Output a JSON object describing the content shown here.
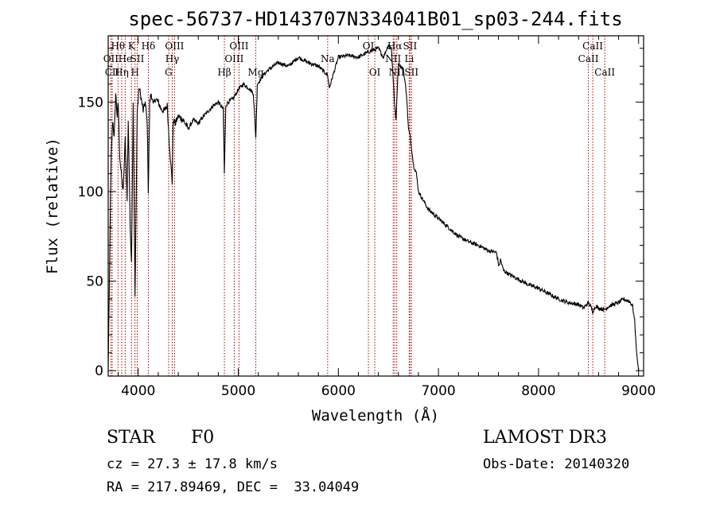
{
  "chart_data": {
    "type": "line",
    "title": "spec-56737-HD143707N334041B01_sp03-244.fits",
    "xlabel": "Wavelength (Å)",
    "ylabel": "Flux (relative)",
    "xlim": [
      3700,
      9050
    ],
    "ylim": [
      -3,
      187
    ],
    "xticks": [
      4000,
      5000,
      6000,
      7000,
      8000,
      9000
    ],
    "yticks": [
      0,
      50,
      100,
      150
    ],
    "series": [
      {
        "name": "flux",
        "x": [
          3700,
          3710,
          3720,
          3730,
          3745,
          3760,
          3775,
          3790,
          3800,
          3815,
          3830,
          3850,
          3870,
          3889,
          3900,
          3920,
          3933,
          3950,
          3968,
          3990,
          4010,
          4030,
          4050,
          4070,
          4090,
          4101,
          4115,
          4130,
          4150,
          4170,
          4200,
          4230,
          4260,
          4290,
          4310,
          4330,
          4340,
          4350,
          4370,
          4400,
          4450,
          4500,
          4550,
          4600,
          4650,
          4700,
          4750,
          4800,
          4850,
          4861,
          4875,
          4900,
          4950,
          5000,
          5050,
          5100,
          5150,
          5175,
          5190,
          5250,
          5300,
          5400,
          5500,
          5600,
          5700,
          5800,
          5893,
          5910,
          6000,
          6100,
          6200,
          6300,
          6400,
          6450,
          6500,
          6530,
          6563,
          6575,
          6600,
          6620,
          6650,
          6680,
          6700,
          6720,
          6750,
          6780,
          6800,
          6850,
          6900,
          7000,
          7100,
          7200,
          7300,
          7400,
          7500,
          7580,
          7605,
          7620,
          7650,
          7700,
          7800,
          7900,
          8000,
          8100,
          8200,
          8300,
          8400,
          8450,
          8498,
          8520,
          8542,
          8570,
          8600,
          8662,
          8700,
          8750,
          8800,
          8850,
          8900,
          8920,
          8940,
          8960,
          8980,
          9000
        ],
        "y": [
          2,
          40,
          85,
          120,
          140,
          130,
          155,
          142,
          150,
          120,
          110,
          100,
          130,
          95,
          140,
          80,
          60,
          150,
          40,
          145,
          158,
          152,
          145,
          150,
          138,
          100,
          150,
          155,
          148,
          152,
          150,
          146,
          145,
          148,
          128,
          112,
          105,
          140,
          138,
          142,
          140,
          135,
          140,
          138,
          142,
          145,
          148,
          150,
          146,
          110,
          148,
          150,
          152,
          157,
          160,
          158,
          155,
          130,
          160,
          165,
          168,
          172,
          170,
          175,
          172,
          170,
          165,
          158,
          175,
          176,
          175,
          178,
          180,
          175,
          182,
          180,
          148,
          140,
          172,
          170,
          168,
          155,
          135,
          130,
          115,
          110,
          100,
          95,
          90,
          85,
          80,
          75,
          72,
          70,
          67,
          66,
          58,
          62,
          56,
          54,
          51,
          48,
          46,
          43,
          40,
          38,
          37,
          35,
          38,
          36,
          33,
          36,
          35,
          34,
          36,
          37,
          38,
          40,
          39,
          38,
          36,
          28,
          10,
          0
        ]
      }
    ],
    "line_markers": [
      {
        "label": "Hθ",
        "x": 3798,
        "row": 1
      },
      {
        "label": "OII",
        "x": 3727,
        "row": 2
      },
      {
        "label": "CII",
        "x": 3740,
        "row": 3
      },
      {
        "label": "Hη",
        "x": 3835,
        "row": 3
      },
      {
        "label": "He",
        "x": 3870,
        "row": 2
      },
      {
        "label": "K",
        "x": 3933,
        "row": 1
      },
      {
        "label": "SII",
        "x": 3990,
        "row": 2
      },
      {
        "label": "H",
        "x": 3968,
        "row": 3
      },
      {
        "label": "Hδ",
        "x": 4101,
        "row": 1
      },
      {
        "label": "OIII",
        "x": 4363,
        "row": 1
      },
      {
        "label": "Hγ",
        "x": 4340,
        "row": 2
      },
      {
        "label": "G",
        "x": 4304,
        "row": 3
      },
      {
        "label": "Hβ",
        "x": 4861,
        "row": 3
      },
      {
        "label": "OIII",
        "x": 5007,
        "row": 1
      },
      {
        "label": "OIII",
        "x": 4959,
        "row": 2
      },
      {
        "label": "Mg",
        "x": 5175,
        "row": 3
      },
      {
        "label": "Na",
        "x": 5893,
        "row": 2
      },
      {
        "label": "OI",
        "x": 6300,
        "row": 1
      },
      {
        "label": "OI",
        "x": 6364,
        "row": 3
      },
      {
        "label": "NII",
        "x": 6548,
        "row": 2
      },
      {
        "label": "Hα",
        "x": 6563,
        "row": 1
      },
      {
        "label": "NII",
        "x": 6583,
        "row": 3
      },
      {
        "label": "SII",
        "x": 6716,
        "row": 1
      },
      {
        "label": "Li",
        "x": 6708,
        "row": 2
      },
      {
        "label": "SII",
        "x": 6731,
        "row": 3
      },
      {
        "label": "CaII",
        "x": 8542,
        "row": 1
      },
      {
        "label": "CaII",
        "x": 8498,
        "row": 2
      },
      {
        "label": "CaII",
        "x": 8662,
        "row": 3
      }
    ],
    "colors": {
      "marker": "#b00000",
      "line": "#000000"
    }
  },
  "info": {
    "object_class": "STAR",
    "subclass": "F0",
    "survey": "LAMOST DR3",
    "redshift": "cz = 27.3 ± 17.8 km/s",
    "obs_date": "Obs-Date: 20140320",
    "coords": "RA = 217.89469, DEC =  33.04049"
  }
}
